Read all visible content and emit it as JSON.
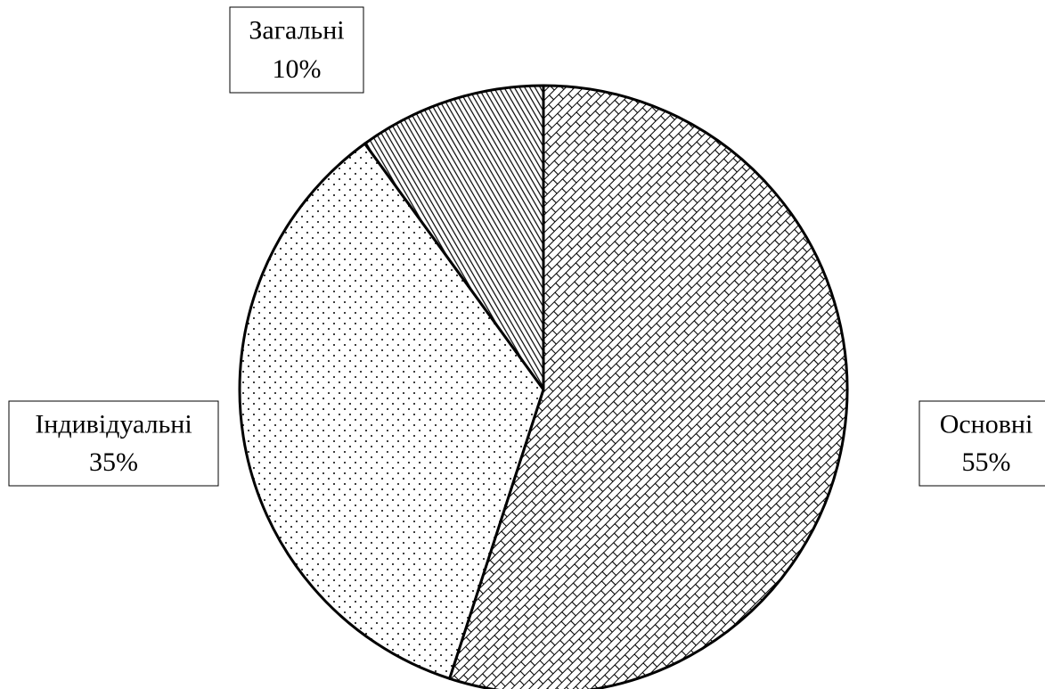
{
  "chart_data": {
    "type": "pie",
    "categories": [
      "Основні",
      "Індивідуальні",
      "Загальні"
    ],
    "values": [
      55,
      35,
      10
    ],
    "value_labels": [
      "55%",
      "35%",
      "10%"
    ],
    "patterns": [
      "brick",
      "dots",
      "stripes"
    ]
  }
}
